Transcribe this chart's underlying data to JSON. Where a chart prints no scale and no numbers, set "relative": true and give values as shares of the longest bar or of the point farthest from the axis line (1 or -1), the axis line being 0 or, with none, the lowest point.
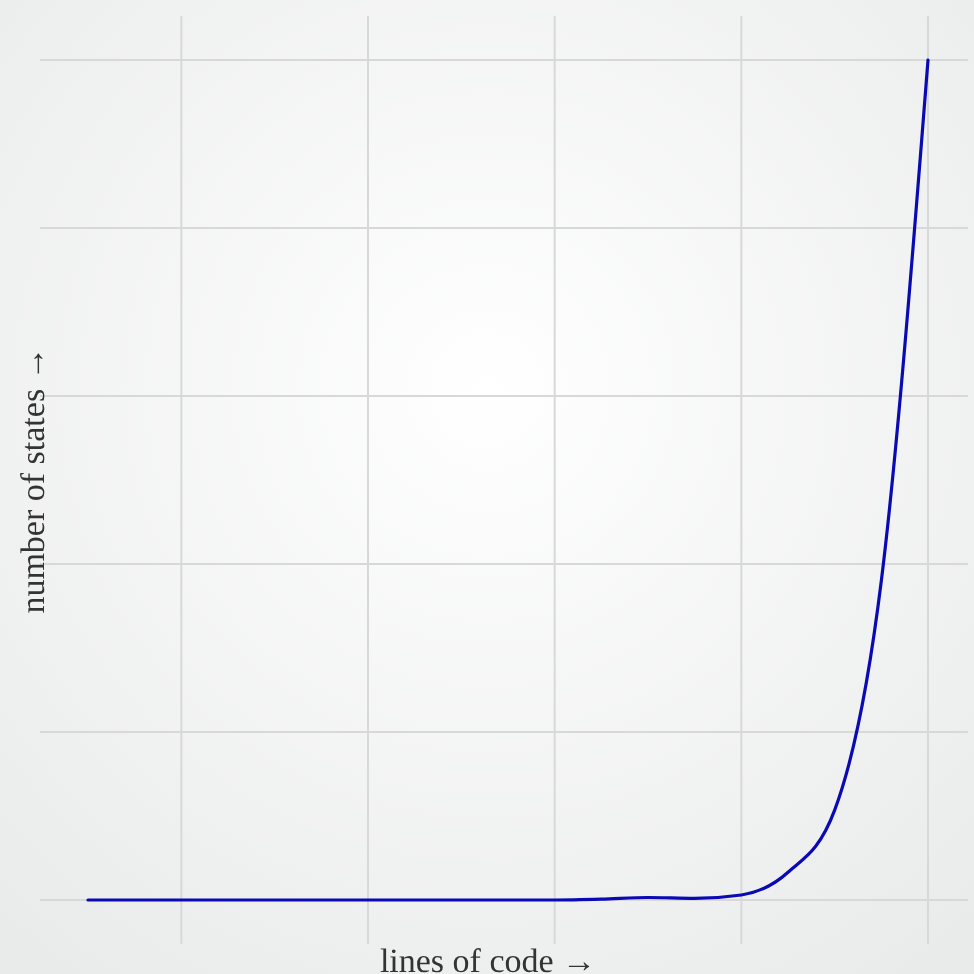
{
  "chart_data": {
    "type": "line",
    "relative": true,
    "xlabel": "lines of code →",
    "ylabel": "number of states →",
    "grid": true,
    "categories": [
      null,
      null,
      null,
      null,
      null,
      null,
      null,
      null,
      null,
      null,
      null,
      null,
      null,
      null,
      null,
      null,
      null,
      null,
      null
    ],
    "series": [
      {
        "color": "#0a0ab4",
        "values": [
          0,
          0,
          0,
          0,
          0,
          0,
          0,
          0,
          0,
          0,
          0,
          0.001,
          0.003,
          0.002,
          0.006,
          0.033,
          0.107,
          0.38,
          1
        ]
      }
    ]
  }
}
